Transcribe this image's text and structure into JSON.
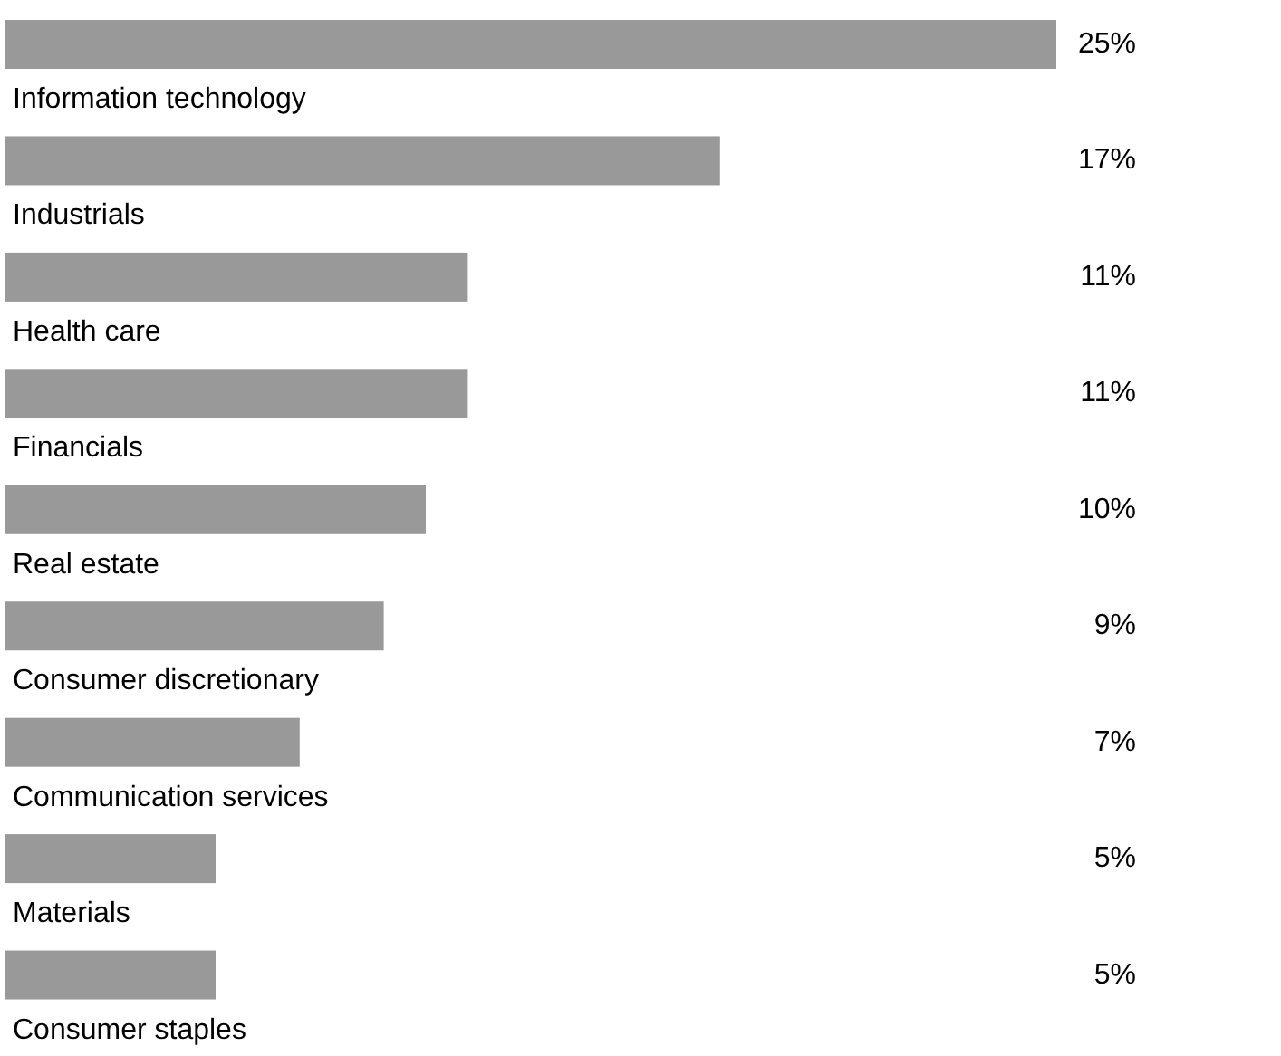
{
  "chart_data": {
    "type": "bar",
    "orientation": "horizontal",
    "categories": [
      "Information technology",
      "Industrials",
      "Health care",
      "Financials",
      "Real estate",
      "Consumer discretionary",
      "Communication services",
      "Materials",
      "Consumer staples"
    ],
    "values": [
      25,
      17,
      11,
      11,
      10,
      9,
      7,
      5,
      5
    ],
    "value_labels": [
      "25%",
      "17%",
      "11%",
      "11%",
      "10%",
      "9%",
      "7%",
      "5%",
      "5%"
    ],
    "color": "#999999",
    "grid": false
  }
}
